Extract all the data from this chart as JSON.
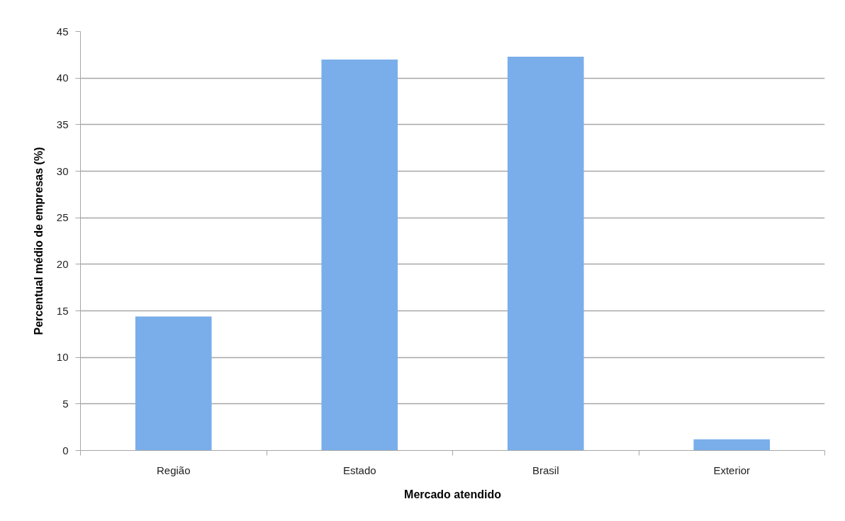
{
  "chart_data": {
    "type": "bar",
    "xlabel": "Mercado atendido",
    "ylabel": "Percentual médio de empresas (%)",
    "categories": [
      "Região",
      "Estado",
      "Brasil",
      "Exterior"
    ],
    "values": [
      14.4,
      42.0,
      42.3,
      1.2
    ],
    "color": "#7aaeea",
    "ylim": [
      0,
      45
    ],
    "yticks": [
      0,
      5,
      10,
      15,
      20,
      25,
      30,
      35,
      40,
      45
    ],
    "grid": "y"
  }
}
